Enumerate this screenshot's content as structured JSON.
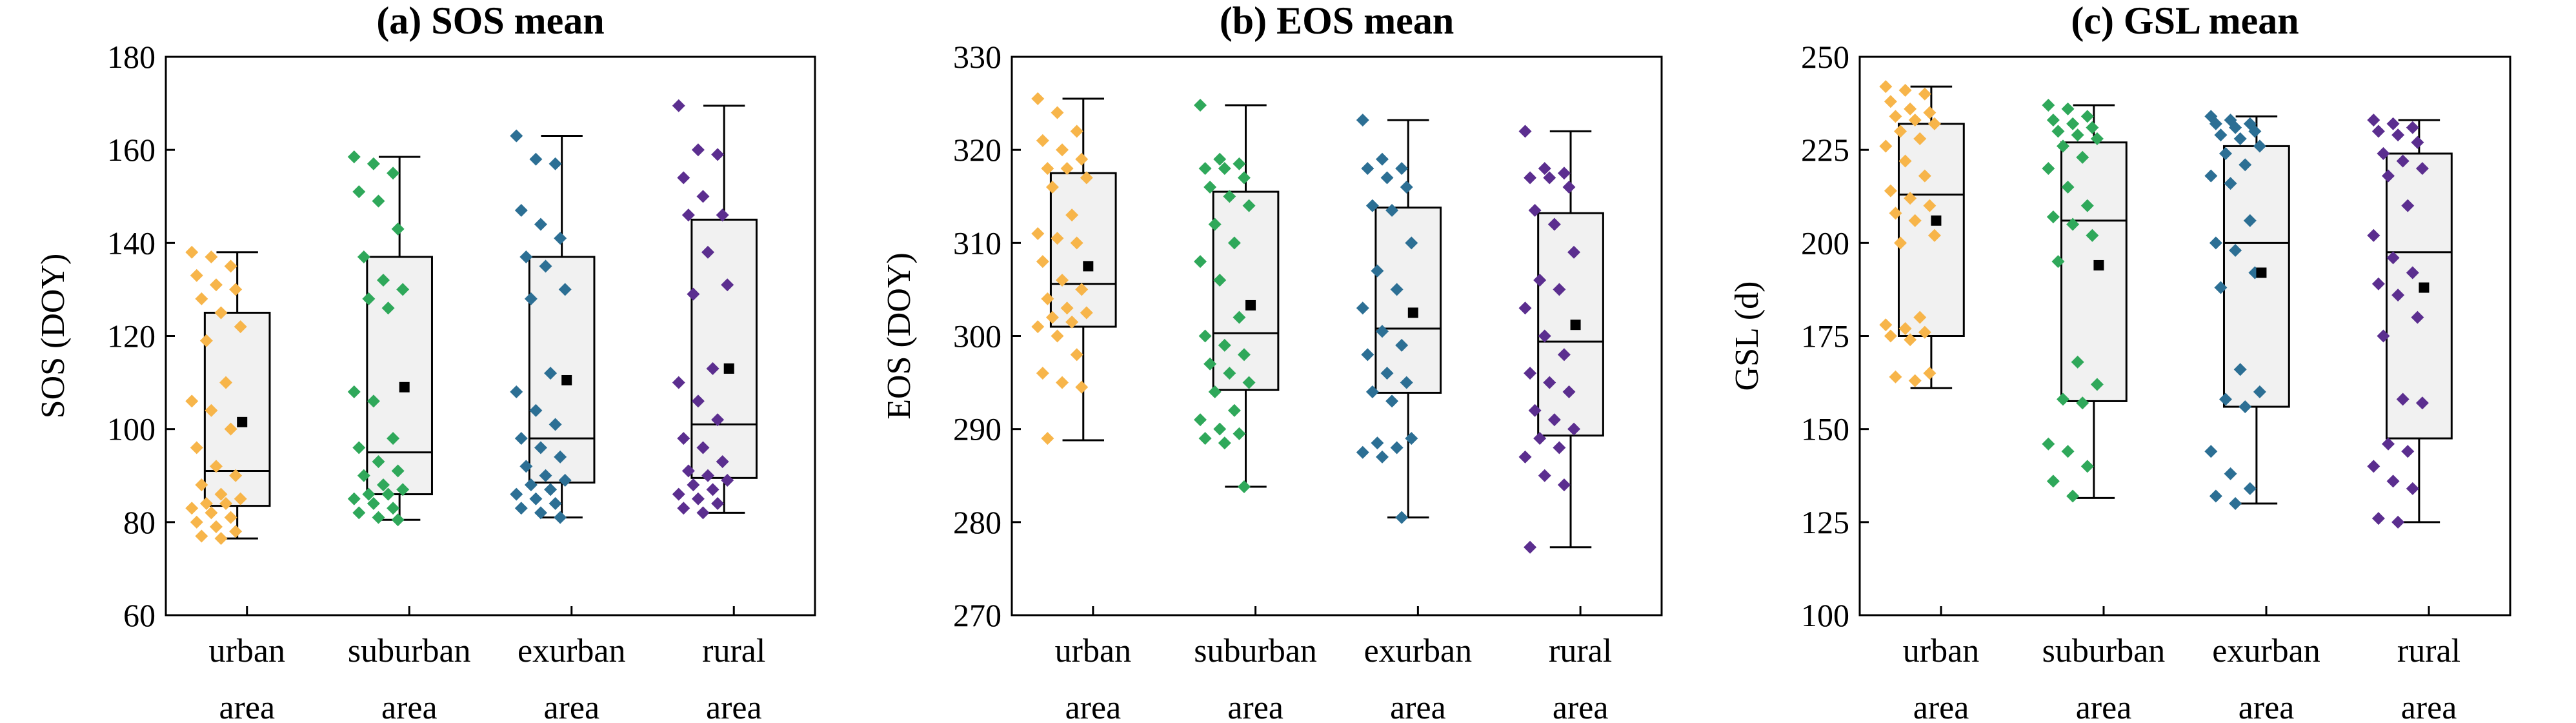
{
  "figure": {
    "panels": [
      {
        "id": "a",
        "title": "(a)   SOS mean"
      },
      {
        "id": "b",
        "title": "(b)   EOS mean"
      },
      {
        "id": "c",
        "title": "(c)   GSL mean"
      }
    ]
  },
  "chart_data": [
    {
      "type": "box",
      "title": "(a)   SOS mean",
      "ylabel": "SOS (DOY)",
      "xlabel": "",
      "ylim": [
        60,
        180
      ],
      "yticks": [
        60,
        80,
        100,
        120,
        140,
        160,
        180
      ],
      "categories": [
        [
          "urban",
          "area"
        ],
        [
          "suburban",
          "area"
        ],
        [
          "exurban",
          "area"
        ],
        [
          "rural",
          "area"
        ]
      ],
      "colors": [
        "#F7B54A",
        "#2FA85A",
        "#2C6F94",
        "#5B2E8F"
      ],
      "boxes": [
        {
          "whisker_low": 76.5,
          "q1": 83.5,
          "median": 91,
          "q3": 125,
          "whisker_high": 138,
          "mean": 101.5
        },
        {
          "whisker_low": 80.5,
          "q1": 86,
          "median": 95,
          "q3": 137,
          "whisker_high": 158.5,
          "mean": 109
        },
        {
          "whisker_low": 81,
          "q1": 88.5,
          "median": 98,
          "q3": 137,
          "whisker_high": 163,
          "mean": 110.5
        },
        {
          "whisker_low": 82,
          "q1": 89.5,
          "median": 101,
          "q3": 145,
          "whisker_high": 169.5,
          "mean": 113
        }
      ],
      "points": [
        [
          138,
          137,
          135,
          133,
          131,
          130,
          128,
          125,
          122,
          119,
          110,
          106,
          104,
          100,
          96,
          92,
          90,
          88,
          86,
          85,
          84,
          84,
          83,
          82,
          81,
          80,
          79,
          78,
          77,
          76.5
        ],
        [
          158.5,
          157,
          155,
          151,
          149,
          143,
          137,
          132,
          130,
          128,
          126,
          108,
          106,
          98,
          96,
          93,
          91,
          90,
          88,
          87,
          86,
          86,
          85,
          84,
          83,
          82,
          81,
          80.5
        ],
        [
          163,
          158,
          157,
          147,
          144,
          141,
          137,
          135,
          130,
          128,
          112,
          108,
          104,
          101,
          98,
          96,
          94,
          92,
          90,
          89,
          88,
          87,
          86,
          85,
          84,
          83,
          82,
          81
        ],
        [
          169.5,
          160,
          159,
          154,
          150,
          146,
          146,
          138,
          131,
          129,
          113,
          110,
          106,
          102,
          98,
          96,
          93,
          91,
          90,
          89,
          88,
          87,
          86,
          85,
          84,
          83,
          82
        ]
      ]
    },
    {
      "type": "box",
      "title": "(b)   EOS mean",
      "ylabel": "EOS (DOY)",
      "xlabel": "",
      "ylim": [
        270,
        330
      ],
      "yticks": [
        270,
        280,
        290,
        300,
        310,
        320,
        330
      ],
      "categories": [
        [
          "urban",
          "area"
        ],
        [
          "suburban",
          "area"
        ],
        [
          "exurban",
          "area"
        ],
        [
          "rural",
          "area"
        ]
      ],
      "colors": [
        "#F7B54A",
        "#2FA85A",
        "#2C6F94",
        "#5B2E8F"
      ],
      "boxes": [
        {
          "whisker_low": 288.8,
          "q1": 301,
          "median": 305.6,
          "q3": 317.5,
          "whisker_high": 325.5,
          "mean": 307.5
        },
        {
          "whisker_low": 283.8,
          "q1": 294.2,
          "median": 300.3,
          "q3": 315.5,
          "whisker_high": 324.8,
          "mean": 303.3
        },
        {
          "whisker_low": 280.5,
          "q1": 293.9,
          "median": 300.8,
          "q3": 313.8,
          "whisker_high": 323.2,
          "mean": 302.5
        },
        {
          "whisker_low": 277.3,
          "q1": 289.3,
          "median": 299.4,
          "q3": 313.2,
          "whisker_high": 322,
          "mean": 301.2
        }
      ],
      "points": [
        [
          325.5,
          324,
          322,
          321,
          320,
          319,
          318,
          318,
          317,
          316,
          313,
          311,
          310.5,
          310,
          308,
          306,
          305,
          304,
          303,
          302.5,
          302,
          301.5,
          301,
          300,
          298,
          296,
          295,
          294.5,
          289
        ],
        [
          324.8,
          319,
          318.5,
          318,
          318,
          317,
          316,
          315,
          314,
          312,
          310,
          308,
          306,
          302,
          300,
          299,
          298,
          297,
          296,
          295,
          294,
          292,
          291,
          290,
          289.5,
          289,
          288.5,
          283.8
        ],
        [
          323.2,
          319,
          318,
          318,
          317,
          316,
          314,
          313.5,
          310,
          307,
          305,
          303,
          300.5,
          299,
          298,
          296,
          295,
          294,
          293,
          289,
          288.5,
          288,
          287.5,
          287,
          280.5
        ],
        [
          322,
          318,
          317.5,
          317,
          317,
          316,
          313.5,
          312,
          309,
          306,
          305,
          303,
          300,
          298,
          296,
          295,
          294,
          292,
          291,
          290,
          289,
          288,
          287,
          285,
          284,
          277.3
        ]
      ]
    },
    {
      "type": "box",
      "title": "(c)   GSL mean",
      "ylabel": "GSL (d)",
      "xlabel": "",
      "ylim": [
        100,
        250
      ],
      "yticks": [
        100,
        125,
        150,
        175,
        200,
        225,
        250
      ],
      "categories": [
        [
          "urban",
          "area"
        ],
        [
          "suburban",
          "area"
        ],
        [
          "exurban",
          "area"
        ],
        [
          "rural",
          "area"
        ]
      ],
      "colors": [
        "#F7B54A",
        "#2FA85A",
        "#2C6F94",
        "#5B2E8F"
      ],
      "boxes": [
        {
          "whisker_low": 161,
          "q1": 175,
          "median": 213,
          "q3": 232,
          "whisker_high": 242,
          "mean": 206
        },
        {
          "whisker_low": 131.5,
          "q1": 157.5,
          "median": 206,
          "q3": 227,
          "whisker_high": 237,
          "mean": 194
        },
        {
          "whisker_low": 130,
          "q1": 156,
          "median": 200,
          "q3": 226,
          "whisker_high": 234,
          "mean": 192
        },
        {
          "whisker_low": 125,
          "q1": 147.5,
          "median": 197.5,
          "q3": 224,
          "whisker_high": 233,
          "mean": 188
        }
      ],
      "points": [
        [
          242,
          241,
          240,
          238,
          236,
          235,
          234,
          233,
          232,
          230,
          228,
          226,
          222,
          218,
          214,
          212,
          210,
          208,
          206,
          202,
          200,
          180,
          178,
          177,
          176,
          175,
          174,
          165,
          164,
          163
        ],
        [
          237,
          236,
          234,
          233,
          232,
          231,
          230,
          229,
          228,
          226,
          223,
          220,
          215,
          210,
          207,
          205,
          202,
          195,
          168,
          162,
          158,
          157,
          146,
          144,
          140,
          136,
          132
        ],
        [
          234,
          233,
          232,
          232,
          231,
          230,
          229,
          228,
          226,
          224,
          221,
          218,
          216,
          206,
          200,
          198,
          192,
          188,
          166,
          160,
          158,
          156,
          144,
          138,
          134,
          132,
          130
        ],
        [
          233,
          232,
          231,
          230,
          229,
          227,
          224,
          222,
          220,
          218,
          210,
          202,
          196,
          192,
          189,
          186,
          180,
          175,
          158,
          157,
          146,
          144,
          140,
          136,
          134,
          126,
          125
        ]
      ]
    }
  ]
}
